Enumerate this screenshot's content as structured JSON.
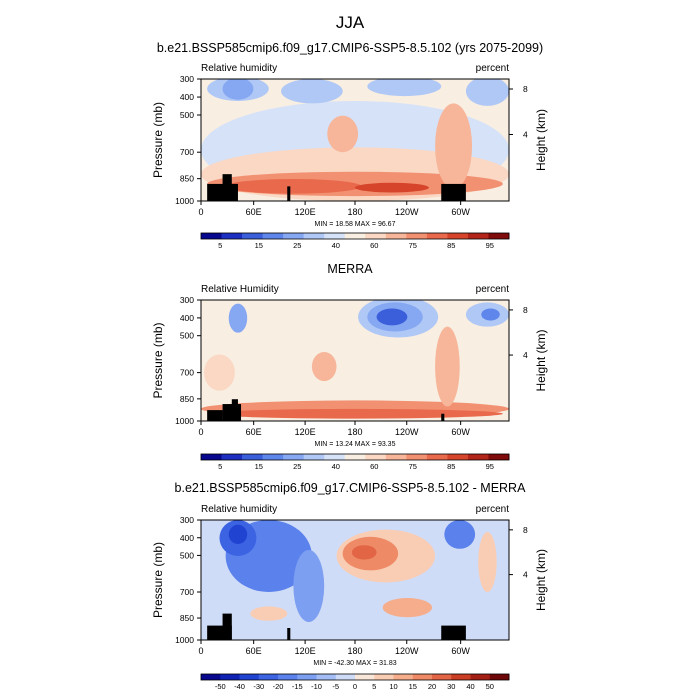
{
  "figure_title": "JJA",
  "colors": {
    "frame": "#000000",
    "land": "#000000",
    "background": "#ffffff"
  },
  "chart_data": [
    {
      "type": "heatmap",
      "title": "b.e21.BSSP585cmip6.f09_g17.CMIP6-SSP5-8.5.102 (yrs 2075-2099)",
      "left_label": "Relative humidity",
      "right_label": "percent",
      "ylabel": "Pressure (mb)",
      "ylabel_right": "Height (km)",
      "xticks": [
        "0",
        "60E",
        "120E",
        "180",
        "120W",
        "60W"
      ],
      "yticks": [
        "300",
        "400",
        "500",
        "700",
        "850",
        "1000"
      ],
      "yticks_right": [
        "8",
        "4"
      ],
      "min_max_text": "MIN = 18.58  MAX = 96.67",
      "x_range": [
        0,
        360
      ],
      "y_range": [
        1000,
        300
      ],
      "colorbar_labels": [
        "5",
        "15",
        "25",
        "40",
        "60",
        "75",
        "85",
        "95"
      ],
      "colorbar_colors": [
        "#08088f",
        "#1d2fc0",
        "#3b5fdb",
        "#5f86eb",
        "#86a8f2",
        "#b0c8f6",
        "#d6e2f8",
        "#f8eee2",
        "#fad8c4",
        "#f7b69a",
        "#f29172",
        "#e9694c",
        "#d6452b",
        "#b3241a",
        "#7f0b0b"
      ]
    },
    {
      "type": "heatmap",
      "title": "MERRA",
      "left_label": "Relative Humidity",
      "right_label": "percent",
      "ylabel": "Pressure (mb)",
      "ylabel_right": "Height (km)",
      "xticks": [
        "0",
        "60E",
        "120E",
        "180",
        "120W",
        "60W"
      ],
      "yticks": [
        "300",
        "400",
        "500",
        "700",
        "850",
        "1000"
      ],
      "yticks_right": [
        "8",
        "4"
      ],
      "min_max_text": "MIN = 13.24  MAX = 93.35",
      "x_range": [
        0,
        360
      ],
      "y_range": [
        1000,
        300
      ],
      "colorbar_labels": [
        "5",
        "15",
        "25",
        "40",
        "60",
        "75",
        "85",
        "95"
      ],
      "colorbar_colors": [
        "#08088f",
        "#1d2fc0",
        "#3b5fdb",
        "#5f86eb",
        "#86a8f2",
        "#b0c8f6",
        "#d6e2f8",
        "#f8eee2",
        "#fad8c4",
        "#f7b69a",
        "#f29172",
        "#e9694c",
        "#d6452b",
        "#b3241a",
        "#7f0b0b"
      ]
    },
    {
      "type": "heatmap",
      "title": "b.e21.BSSP585cmip6.f09_g17.CMIP6-SSP5-8.5.102 - MERRA",
      "left_label": "Relative humidity",
      "right_label": "percent",
      "ylabel": "Pressure (mb)",
      "ylabel_right": "Height (km)",
      "xticks": [
        "0",
        "60E",
        "120E",
        "180",
        "120W",
        "60W"
      ],
      "yticks": [
        "300",
        "400",
        "500",
        "700",
        "850",
        "1000"
      ],
      "yticks_right": [
        "8",
        "4"
      ],
      "min_max_text": "MIN = -42.30  MAX = 31.83",
      "x_range": [
        0,
        360
      ],
      "y_range": [
        1000,
        300
      ],
      "colorbar_labels": [
        "-50",
        "-40",
        "-30",
        "-20",
        "-15",
        "-10",
        "-5",
        "0",
        "5",
        "10",
        "15",
        "20",
        "30",
        "40",
        "50"
      ],
      "colorbar_colors": [
        "#08088f",
        "#0f22b4",
        "#2143d2",
        "#3c63e2",
        "#5b82ec",
        "#7d9ff1",
        "#a4bdf5",
        "#cfdcf8",
        "#f8e6d8",
        "#f9cdb4",
        "#f5ad8c",
        "#ee8a66",
        "#e26545",
        "#c93e25",
        "#a31f14",
        "#6e0707"
      ]
    }
  ]
}
